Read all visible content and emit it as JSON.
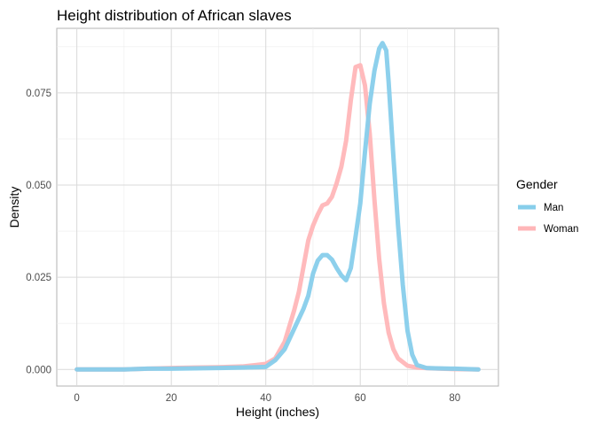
{
  "chart_data": {
    "type": "line",
    "title": "Height distribution of African slaves",
    "xlabel": "Height (inches)",
    "ylabel": "Density",
    "xlim": [
      -4.25,
      89.25
    ],
    "ylim": [
      -0.0045,
      0.0925
    ],
    "x_ticks": [
      0,
      20,
      40,
      60,
      80
    ],
    "x_tick_labels": [
      "0",
      "20",
      "40",
      "60",
      "80"
    ],
    "y_ticks": [
      0.0,
      0.025,
      0.05,
      0.075
    ],
    "y_tick_labels": [
      "0.000",
      "0.025",
      "0.050",
      "0.075"
    ],
    "grid": true,
    "legend": {
      "title": "Gender",
      "position": "right"
    },
    "series": [
      {
        "name": "Man",
        "color": "#87CEEB",
        "x": [
          0,
          5,
          10,
          15,
          20,
          25,
          30,
          35,
          38,
          40,
          42,
          44,
          46,
          48,
          49,
          50,
          51,
          52,
          53,
          54,
          55,
          56,
          57,
          58,
          59,
          60,
          61,
          62,
          63,
          64,
          64.7,
          65.5,
          66,
          67,
          68,
          69,
          70,
          71,
          72,
          74,
          76,
          80,
          85
        ],
        "y": [
          0.0,
          0.0,
          0.0,
          0.0002,
          0.0002,
          0.0003,
          0.0004,
          0.0005,
          0.0006,
          0.0007,
          0.0025,
          0.0055,
          0.011,
          0.0165,
          0.02,
          0.026,
          0.0295,
          0.031,
          0.031,
          0.0298,
          0.0275,
          0.0255,
          0.0242,
          0.0275,
          0.036,
          0.045,
          0.059,
          0.072,
          0.081,
          0.087,
          0.0885,
          0.0865,
          0.078,
          0.058,
          0.039,
          0.023,
          0.0105,
          0.004,
          0.0012,
          0.0004,
          0.0003,
          0.0002,
          0.0
        ]
      },
      {
        "name": "Woman",
        "color": "#FFB6B8",
        "x": [
          0,
          5,
          10,
          15,
          20,
          25,
          30,
          35,
          38,
          40,
          42,
          44,
          46,
          47,
          48,
          49,
          50,
          51,
          52,
          53,
          54,
          55,
          56,
          57,
          58,
          59,
          60,
          61,
          62,
          63,
          64,
          65,
          66,
          67,
          68,
          70,
          72,
          75,
          80,
          85
        ],
        "y": [
          0.0,
          0.0,
          0.0,
          0.0002,
          0.0004,
          0.0005,
          0.0006,
          0.0008,
          0.0012,
          0.0015,
          0.003,
          0.0075,
          0.016,
          0.021,
          0.028,
          0.035,
          0.039,
          0.042,
          0.0445,
          0.045,
          0.0468,
          0.0505,
          0.055,
          0.062,
          0.073,
          0.082,
          0.0825,
          0.077,
          0.064,
          0.046,
          0.03,
          0.018,
          0.01,
          0.0055,
          0.003,
          0.001,
          0.0005,
          0.0003,
          0.0001,
          0.0
        ]
      }
    ]
  }
}
